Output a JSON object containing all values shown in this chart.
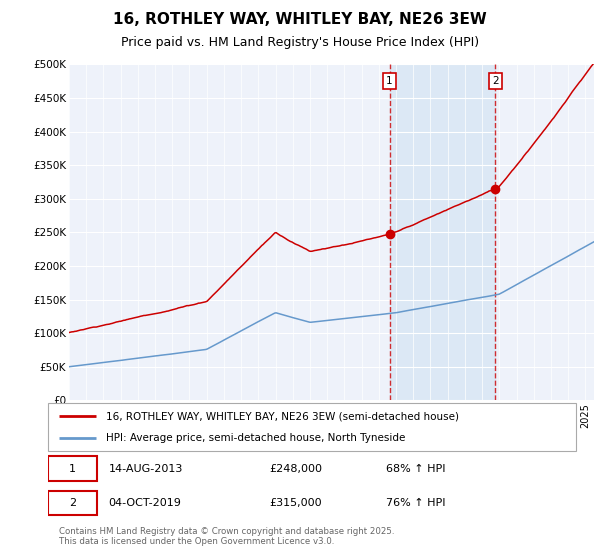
{
  "title": "16, ROTHLEY WAY, WHITLEY BAY, NE26 3EW",
  "subtitle": "Price paid vs. HM Land Registry's House Price Index (HPI)",
  "ylim": [
    0,
    500000
  ],
  "yticks": [
    0,
    50000,
    100000,
    150000,
    200000,
    250000,
    300000,
    350000,
    400000,
    450000,
    500000
  ],
  "ytick_labels": [
    "£0",
    "£50K",
    "£100K",
    "£150K",
    "£200K",
    "£250K",
    "£300K",
    "£350K",
    "£400K",
    "£450K",
    "£500K"
  ],
  "xmin": 1995,
  "xmax": 2025.5,
  "sale1_date": 2013.62,
  "sale1_price": 248000,
  "sale1_label": "1",
  "sale2_date": 2019.77,
  "sale2_price": 315000,
  "sale2_label": "2",
  "sale1_info": "14-AUG-2013",
  "sale1_amount": "£248,000",
  "sale1_hpi": "68% ↑ HPI",
  "sale2_info": "04-OCT-2019",
  "sale2_amount": "£315,000",
  "sale2_hpi": "76% ↑ HPI",
  "legend1": "16, ROTHLEY WAY, WHITLEY BAY, NE26 3EW (semi-detached house)",
  "legend2": "HPI: Average price, semi-detached house, North Tyneside",
  "footer": "Contains HM Land Registry data © Crown copyright and database right 2025.\nThis data is licensed under the Open Government Licence v3.0.",
  "line1_color": "#cc0000",
  "line2_color": "#6699cc",
  "shade_color": "#dce8f5",
  "background_color": "#eef2fa",
  "grid_color": "#ffffff",
  "title_fontsize": 11,
  "subtitle_fontsize": 9,
  "label_box_color": "#cc0000"
}
